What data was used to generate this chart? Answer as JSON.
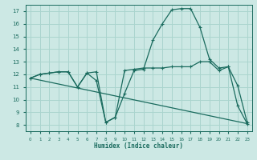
{
  "xlabel": "Humidex (Indice chaleur)",
  "bg_color": "#cce8e4",
  "line_color": "#1a6b5e",
  "grid_color": "#aad4ce",
  "xlim": [
    -0.5,
    23.5
  ],
  "ylim": [
    7.5,
    17.5
  ],
  "xticks": [
    0,
    1,
    2,
    3,
    4,
    5,
    6,
    7,
    8,
    9,
    10,
    11,
    12,
    13,
    14,
    15,
    16,
    17,
    18,
    19,
    20,
    21,
    22,
    23
  ],
  "yticks": [
    8,
    9,
    10,
    11,
    12,
    13,
    14,
    15,
    16,
    17
  ],
  "curve1_x": [
    0,
    1,
    2,
    3,
    4,
    5,
    6,
    7,
    8,
    9,
    10,
    11,
    12,
    13,
    14,
    15,
    16,
    17,
    18,
    19,
    20,
    21,
    22,
    23
  ],
  "curve1_y": [
    11.7,
    12.0,
    12.1,
    12.2,
    12.2,
    11.0,
    12.1,
    12.2,
    8.2,
    8.6,
    10.5,
    12.3,
    12.4,
    14.7,
    16.0,
    17.1,
    17.2,
    17.2,
    15.7,
    13.2,
    12.5,
    12.6,
    11.1,
    8.2
  ],
  "curve2_x": [
    0,
    1,
    2,
    3,
    4,
    5,
    6,
    7,
    8,
    9,
    10,
    11,
    12,
    13,
    14,
    15,
    16,
    17,
    18,
    19,
    20,
    21,
    22,
    23
  ],
  "curve2_y": [
    11.7,
    12.0,
    12.1,
    12.2,
    12.2,
    11.0,
    12.1,
    11.5,
    8.2,
    8.6,
    12.3,
    12.4,
    12.5,
    12.5,
    12.5,
    12.6,
    12.6,
    12.6,
    13.0,
    13.0,
    12.3,
    12.6,
    9.5,
    8.1
  ],
  "curve3_x": [
    0,
    23
  ],
  "curve3_y": [
    11.7,
    8.1
  ]
}
